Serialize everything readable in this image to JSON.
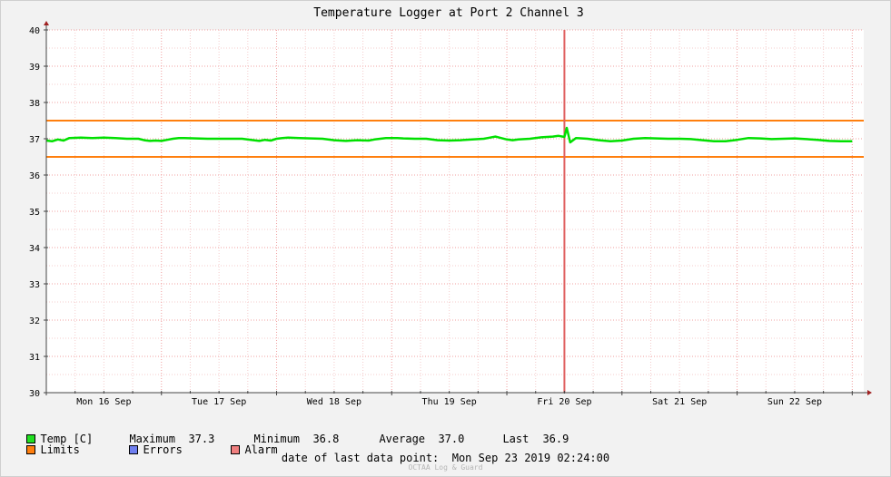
{
  "chart_data": {
    "type": "line",
    "title": "Temperature Logger at Port 2 Channel 3",
    "ylim": [
      30,
      40
    ],
    "y_ticks": [
      "30",
      "31",
      "32",
      "33",
      "34",
      "35",
      "36",
      "37",
      "38",
      "39",
      "40"
    ],
    "x_tick_labels": [
      "Mon 16 Sep",
      "Tue 17 Sep",
      "Wed 18 Sep",
      "Thu 19 Sep",
      "Fri 20 Sep",
      "Sat 21 Sep",
      "Sun 22 Sep"
    ],
    "x_range_days": [
      0,
      7.1
    ],
    "grid": true,
    "limits": {
      "upper": 37.5,
      "lower": 36.5
    },
    "marker_day": 4.5,
    "series": [
      {
        "name": "Temp [C]",
        "color": "#00e000",
        "x_days": [
          0.0,
          0.05,
          0.1,
          0.15,
          0.2,
          0.3,
          0.4,
          0.5,
          0.6,
          0.7,
          0.8,
          0.85,
          0.9,
          0.95,
          1.0,
          1.05,
          1.1,
          1.15,
          1.2,
          1.3,
          1.4,
          1.5,
          1.6,
          1.7,
          1.8,
          1.85,
          1.9,
          1.95,
          2.0,
          2.05,
          2.1,
          2.2,
          2.3,
          2.4,
          2.5,
          2.6,
          2.7,
          2.8,
          2.85,
          2.9,
          2.95,
          3.0,
          3.05,
          3.1,
          3.2,
          3.3,
          3.4,
          3.5,
          3.6,
          3.7,
          3.8,
          3.85,
          3.9,
          3.95,
          4.0,
          4.05,
          4.1,
          4.2,
          4.3,
          4.4,
          4.45,
          4.5,
          4.52,
          4.55,
          4.6,
          4.7,
          4.8,
          4.9,
          5.0,
          5.1,
          5.2,
          5.3,
          5.4,
          5.5,
          5.6,
          5.7,
          5.8,
          5.9,
          6.0,
          6.1,
          6.2,
          6.3,
          6.4,
          6.5,
          6.6,
          6.7,
          6.8,
          6.9,
          7.0
        ],
        "y_values": [
          36.95,
          36.93,
          36.98,
          36.95,
          37.02,
          37.03,
          37.02,
          37.03,
          37.02,
          37.0,
          37.0,
          36.96,
          36.94,
          36.95,
          36.94,
          36.97,
          37.0,
          37.02,
          37.02,
          37.01,
          37.0,
          37.0,
          37.0,
          37.0,
          36.96,
          36.94,
          36.97,
          36.95,
          37.0,
          37.02,
          37.03,
          37.02,
          37.01,
          37.0,
          36.96,
          36.94,
          36.96,
          36.95,
          36.98,
          37.0,
          37.02,
          37.02,
          37.02,
          37.01,
          37.0,
          37.0,
          36.96,
          36.95,
          36.96,
          36.98,
          37.0,
          37.03,
          37.06,
          37.02,
          36.98,
          36.96,
          36.98,
          37.0,
          37.04,
          37.06,
          37.08,
          37.05,
          37.3,
          36.9,
          37.02,
          37.0,
          36.96,
          36.93,
          36.95,
          37.0,
          37.02,
          37.01,
          37.0,
          37.0,
          36.99,
          36.96,
          36.93,
          36.93,
          36.97,
          37.02,
          37.01,
          36.99,
          37.0,
          37.01,
          36.99,
          36.97,
          36.94,
          36.93,
          36.93
        ]
      }
    ]
  },
  "stats": {
    "series_label": "Temp [C]",
    "max_label": "Maximum",
    "max_value": "37.3",
    "min_label": "Minimum",
    "min_value": "36.8",
    "avg_label": "Average",
    "avg_value": "37.0",
    "last_label": "Last",
    "last_value": "36.9"
  },
  "legend": {
    "limits_label": "Limits",
    "limits_color": "#ff7f0e",
    "errors_label": "Errors",
    "errors_color": "#6f7ff0",
    "alarm_label": "Alarm",
    "alarm_color": "#f07f7f",
    "temp_color": "#22e022"
  },
  "footer": {
    "last_point_label": "date of last data point:",
    "last_point_value": "Mon Sep 23 2019 02:24:00",
    "watermark": "OCTAA Log & Guard"
  }
}
